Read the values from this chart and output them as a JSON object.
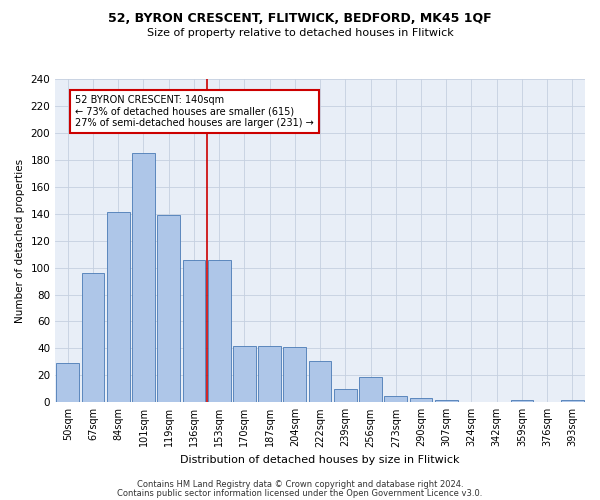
{
  "title1": "52, BYRON CRESCENT, FLITWICK, BEDFORD, MK45 1QF",
  "title2": "Size of property relative to detached houses in Flitwick",
  "xlabel": "Distribution of detached houses by size in Flitwick",
  "ylabel": "Number of detached properties",
  "bin_labels": [
    "50sqm",
    "67sqm",
    "84sqm",
    "101sqm",
    "119sqm",
    "136sqm",
    "153sqm",
    "170sqm",
    "187sqm",
    "204sqm",
    "222sqm",
    "239sqm",
    "256sqm",
    "273sqm",
    "290sqm",
    "307sqm",
    "324sqm",
    "342sqm",
    "359sqm",
    "376sqm",
    "393sqm"
  ],
  "bar_values": [
    29,
    96,
    141,
    185,
    139,
    106,
    106,
    42,
    42,
    41,
    31,
    10,
    19,
    5,
    3,
    2,
    0,
    0,
    2,
    0,
    2
  ],
  "bar_color": "#aec6e8",
  "bar_edge_color": "#4a7ab5",
  "property_bin_index": 5,
  "red_line_color": "#cc0000",
  "annotation_text": "52 BYRON CRESCENT: 140sqm\n← 73% of detached houses are smaller (615)\n27% of semi-detached houses are larger (231) →",
  "annotation_box_color": "#ffffff",
  "annotation_box_edge": "#cc0000",
  "footer1": "Contains HM Land Registry data © Crown copyright and database right 2024.",
  "footer2": "Contains public sector information licensed under the Open Government Licence v3.0.",
  "background_color": "#e8eef7",
  "ylim": [
    0,
    240
  ],
  "yticks": [
    0,
    20,
    40,
    60,
    80,
    100,
    120,
    140,
    160,
    180,
    200,
    220,
    240
  ]
}
